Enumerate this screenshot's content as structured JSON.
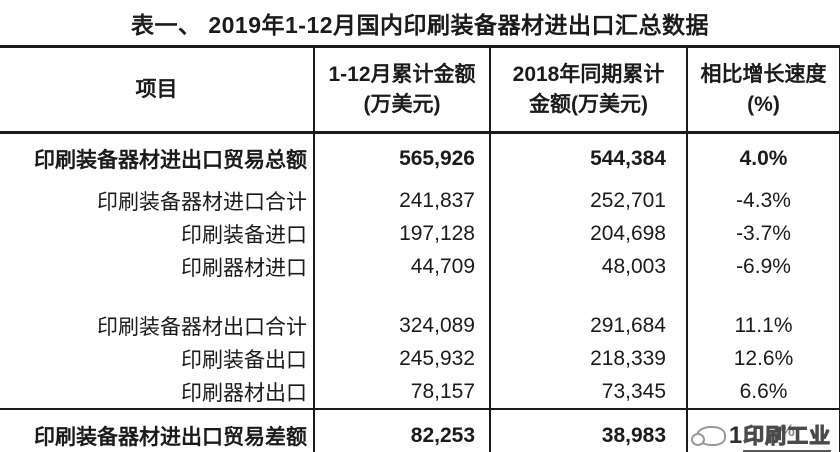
{
  "chart_data": {
    "type": "table",
    "title": "表一、 2019年1-12月国内印刷装备器材进出口汇总数据",
    "unit": "万美元",
    "headers": [
      {
        "line1": "项目",
        "line2": ""
      },
      {
        "line1": "1-12月累计金额",
        "line2": "(万美元)"
      },
      {
        "line1": "2018年同期累计",
        "line2": "金额(万美元)"
      },
      {
        "line1": "相比增长速度",
        "line2": "(%)"
      }
    ],
    "rows": [
      {
        "label": "印刷装备器材进出口贸易总额",
        "amount_2019": "565,926",
        "amount_2018": "544,384",
        "growth": "4.0%",
        "bold": true
      },
      {
        "label": "印刷装备器材进口合计",
        "amount_2019": "241,837",
        "amount_2018": "252,701",
        "growth": "-4.3%",
        "bold": false
      },
      {
        "label": "印刷装备进口",
        "amount_2019": "197,128",
        "amount_2018": "204,698",
        "growth": "-3.7%",
        "bold": false
      },
      {
        "label": "印刷器材进口",
        "amount_2019": "44,709",
        "amount_2018": "48,003",
        "growth": "-6.9%",
        "bold": false
      },
      {
        "label": "印刷装备器材出口合计",
        "amount_2019": "324,089",
        "amount_2018": "291,684",
        "growth": "11.1%",
        "bold": false
      },
      {
        "label": "印刷装备出口",
        "amount_2019": "245,932",
        "amount_2018": "218,339",
        "growth": "12.6%",
        "bold": false
      },
      {
        "label": "印刷器材出口",
        "amount_2019": "78,157",
        "amount_2018": "73,345",
        "growth": "6.6%",
        "bold": false
      },
      {
        "label": "印刷装备器材进出口贸易差额",
        "amount_2019": "82,253",
        "amount_2018": "38,983",
        "growth": "",
        "bold": true
      }
    ]
  },
  "watermark": {
    "visible_digit": "1",
    "logo_text": "印刷工业",
    "percent_mark": "%"
  }
}
